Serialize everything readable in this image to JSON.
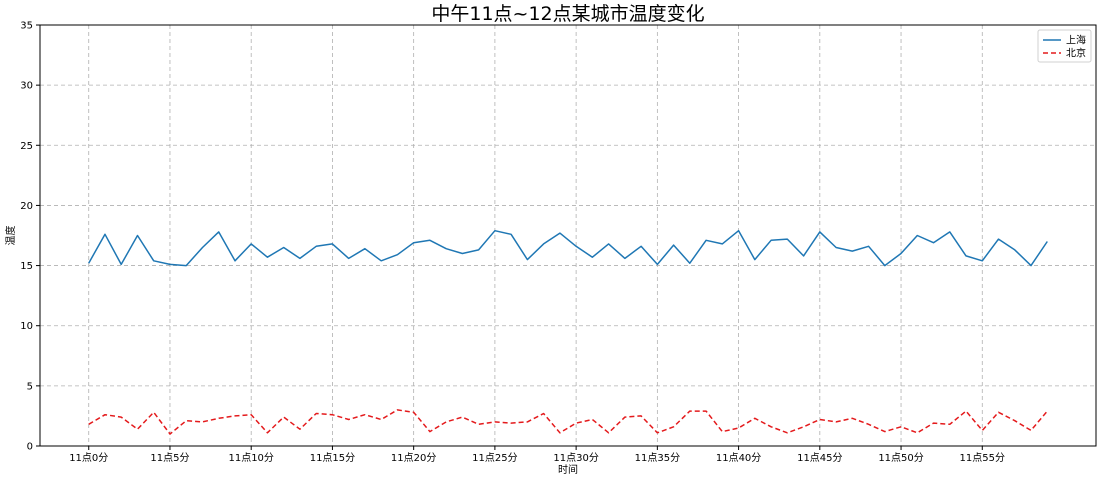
{
  "chart_data": {
    "type": "line",
    "title": "中午11点~12点某城市温度变化",
    "xlabel": "时间",
    "ylabel": "温度",
    "xlim": [
      -3,
      62
    ],
    "ylim": [
      0,
      35
    ],
    "yticks": [
      0,
      5,
      10,
      15,
      20,
      25,
      30,
      35
    ],
    "xticks": [
      0,
      5,
      10,
      15,
      20,
      25,
      30,
      35,
      40,
      45,
      50,
      55
    ],
    "xtick_labels": [
      "11点0分",
      "11点5分",
      "11点10分",
      "11点15分",
      "11点20分",
      "11点25分",
      "11点30分",
      "11点35分",
      "11点40分",
      "11点45分",
      "11点50分",
      "11点55分"
    ],
    "grid": true,
    "legend_position": "top-right",
    "series": [
      {
        "name": "上海",
        "color": "#1f77b4",
        "style": "solid",
        "values": [
          15.2,
          17.6,
          15.1,
          17.5,
          15.4,
          15.1,
          15.0,
          16.5,
          17.8,
          15.4,
          16.8,
          15.7,
          16.5,
          15.6,
          16.6,
          16.8,
          15.6,
          16.4,
          15.4,
          15.9,
          16.9,
          17.1,
          16.4,
          16.0,
          16.3,
          17.9,
          17.6,
          15.5,
          16.8,
          17.7,
          16.6,
          15.7,
          16.8,
          15.6,
          16.6,
          15.1,
          16.7,
          15.2,
          17.1,
          16.8,
          17.9,
          15.5,
          17.1,
          17.2,
          15.8,
          17.8,
          16.5,
          16.2,
          16.6,
          15.0,
          16.0,
          17.5,
          16.9,
          17.8,
          15.8,
          15.4,
          17.2,
          16.3,
          15.0,
          17.0
        ]
      },
      {
        "name": "北京",
        "color": "#e41a1c",
        "style": "dashed",
        "values": [
          1.8,
          2.6,
          2.4,
          1.4,
          2.8,
          1.0,
          2.1,
          2.0,
          2.3,
          2.5,
          2.6,
          1.1,
          2.4,
          1.4,
          2.7,
          2.6,
          2.2,
          2.6,
          2.2,
          3.0,
          2.8,
          1.2,
          2.0,
          2.4,
          1.8,
          2.0,
          1.9,
          2.0,
          2.7,
          1.1,
          1.9,
          2.2,
          1.1,
          2.4,
          2.5,
          1.1,
          1.6,
          2.9,
          2.9,
          1.2,
          1.5,
          2.3,
          1.6,
          1.1,
          1.6,
          2.2,
          2.0,
          2.3,
          1.8,
          1.2,
          1.6,
          1.1,
          1.9,
          1.8,
          2.9,
          1.3,
          2.8,
          2.1,
          1.3,
          2.9
        ]
      }
    ]
  }
}
